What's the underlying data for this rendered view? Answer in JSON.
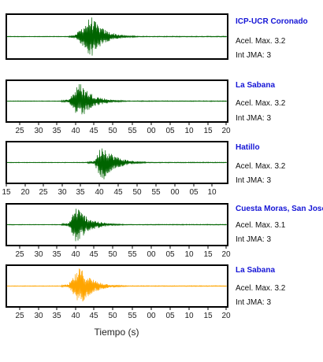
{
  "chart_data": [
    {
      "type": "line",
      "station": "ICP-UCR Coronado",
      "acel_label": "Acel. Max. 3.2",
      "int_label": "Int JMA: 3",
      "color": "#006400",
      "show_ticks": false,
      "tick_labels": [],
      "xlabel": "",
      "x_span_s": 60,
      "onset_s": 19,
      "peak_s": 23,
      "amplitude": 1.0
    },
    {
      "type": "line",
      "station": "La Sabana",
      "acel_label": "Acel. Max. 3.2",
      "int_label": "Int JMA: 3",
      "color": "#006400",
      "show_ticks": true,
      "tick_labels": [
        "25",
        "30",
        "35",
        "40",
        "45",
        "50",
        "55",
        "00",
        "05",
        "10",
        "15",
        "20"
      ],
      "xlabel": "",
      "x_span_s": 60,
      "onset_s": 17,
      "peak_s": 20,
      "amplitude": 1.0
    },
    {
      "type": "line",
      "station": "Hatillo",
      "acel_label": "Acel. Max. 3.2",
      "int_label": "Int JMA: 3",
      "color": "#006400",
      "show_ticks": true,
      "tick_labels": [
        "15",
        "20",
        "25",
        "30",
        "35",
        "40",
        "45",
        "50",
        "55",
        "00",
        "05",
        "10"
      ],
      "xlabel": "",
      "x_span_s": 60,
      "onset_s": 24,
      "peak_s": 26,
      "amplitude": 1.0
    },
    {
      "type": "line",
      "station": "Cuesta Moras, San José",
      "acel_label": "Acel. Max. 3.1",
      "int_label": "Int JMA: 3",
      "color": "#006400",
      "show_ticks": true,
      "tick_labels": [
        "25",
        "30",
        "35",
        "40",
        "45",
        "50",
        "55",
        "00",
        "05",
        "10",
        "15",
        "20"
      ],
      "xlabel": "",
      "x_span_s": 60,
      "onset_s": 17,
      "peak_s": 19,
      "amplitude": 1.0
    },
    {
      "type": "line",
      "station": "La Sabana",
      "acel_label": "Acel. Max. 3.2",
      "int_label": "Int JMA: 3",
      "color": "#FFA500",
      "show_ticks": true,
      "tick_labels": [
        "25",
        "30",
        "35",
        "40",
        "45",
        "50",
        "55",
        "00",
        "05",
        "10",
        "15",
        "20"
      ],
      "xlabel": "Tiempo (s)",
      "x_span_s": 60,
      "onset_s": 17,
      "peak_s": 20,
      "amplitude": 1.0
    }
  ]
}
